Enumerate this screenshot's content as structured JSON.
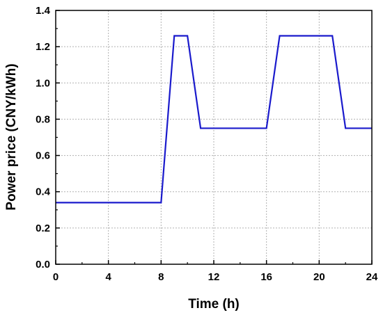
{
  "chart_data": {
    "type": "line",
    "xlabel": "Time (h)",
    "ylabel": "Power price (CNY/kWh)",
    "xlim": [
      0,
      24
    ],
    "ylim": [
      0,
      1.4
    ],
    "x_ticks": [
      0,
      4,
      8,
      12,
      16,
      20,
      24
    ],
    "y_ticks": [
      0.0,
      0.2,
      0.4,
      0.6,
      0.8,
      1.0,
      1.2,
      1.4
    ],
    "grid": true,
    "series": [
      {
        "color": "#1a1acc",
        "x": [
          0,
          8,
          9,
          10,
          11,
          16,
          17,
          21,
          22,
          24
        ],
        "y": [
          0.34,
          0.34,
          1.26,
          1.26,
          0.75,
          0.75,
          1.26,
          1.26,
          0.75,
          0.75
        ]
      }
    ]
  }
}
